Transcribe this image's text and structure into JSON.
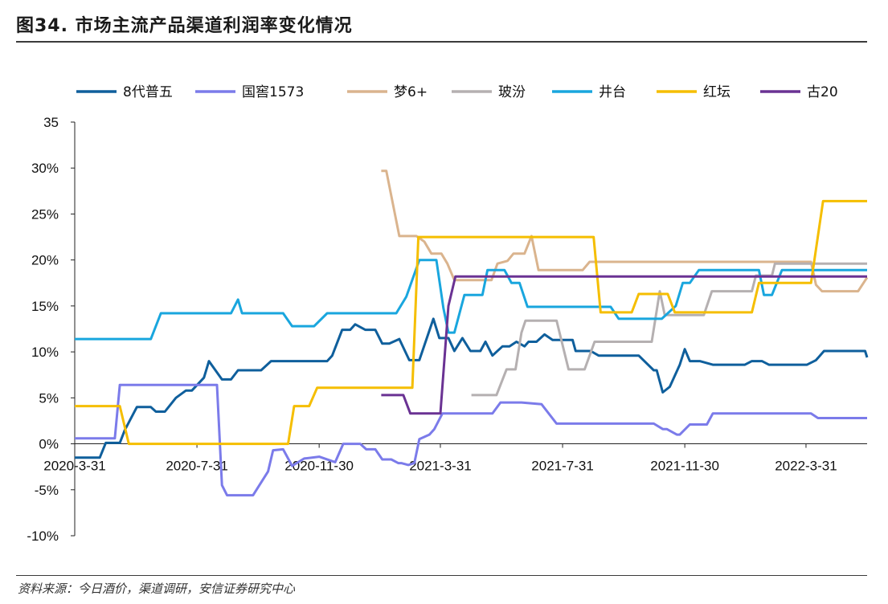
{
  "header": {
    "title": "图34. 市场主流产品渠道利润率变化情况"
  },
  "footer": {
    "source": "资料来源：今日酒价，渠道调研，安信证券研究中心"
  },
  "chart_data": {
    "type": "line",
    "title": "",
    "xlabel": "",
    "ylabel": "",
    "x_range": [
      "2020-03-31",
      "2022-05-31"
    ],
    "ylim": [
      -0.1,
      0.35
    ],
    "y_ticks": [
      "35",
      "30%",
      "25%",
      "20%",
      "15%",
      "10%",
      "5%",
      "0%",
      "-5%",
      "-10%"
    ],
    "x_ticks": [
      {
        "date": "2020-03-31",
        "label": "2020-3-31"
      },
      {
        "date": "2020-07-31",
        "label": "2020-7-31"
      },
      {
        "date": "2020-11-30",
        "label": "2020-11-30"
      },
      {
        "date": "2021-03-31",
        "label": "2021-3-31"
      },
      {
        "date": "2021-07-31",
        "label": "2021-7-31"
      },
      {
        "date": "2021-11-30",
        "label": "2021-11-30"
      },
      {
        "date": "2022-03-31",
        "label": "2022-3-31"
      }
    ],
    "legend_position": "top",
    "grid": false,
    "series": [
      {
        "name": "8代普五",
        "color": "#0f5f9c",
        "points": [
          [
            "2020-03-31",
            -0.015
          ],
          [
            "2020-04-25",
            -0.015
          ],
          [
            "2020-05-01",
            0.001
          ],
          [
            "2020-05-15",
            0.001
          ],
          [
            "2020-05-20",
            0.015
          ],
          [
            "2020-06-01",
            0.04
          ],
          [
            "2020-06-15",
            0.04
          ],
          [
            "2020-06-20",
            0.035
          ],
          [
            "2020-06-29",
            0.035
          ],
          [
            "2020-07-10",
            0.05
          ],
          [
            "2020-07-20",
            0.058
          ],
          [
            "2020-07-26",
            0.058
          ],
          [
            "2020-08-07",
            0.072
          ],
          [
            "2020-08-12",
            0.09
          ],
          [
            "2020-08-25",
            0.07
          ],
          [
            "2020-09-03",
            0.07
          ],
          [
            "2020-09-10",
            0.08
          ],
          [
            "2020-09-29",
            0.08
          ],
          [
            "2020-10-03",
            0.08
          ],
          [
            "2020-10-13",
            0.09
          ],
          [
            "2020-11-30",
            0.09
          ],
          [
            "2020-12-08",
            0.09
          ],
          [
            "2020-12-13",
            0.096
          ],
          [
            "2020-12-23",
            0.124
          ],
          [
            "2020-12-31",
            0.124
          ],
          [
            "2021-01-05",
            0.13
          ],
          [
            "2021-01-15",
            0.124
          ],
          [
            "2021-01-25",
            0.124
          ],
          [
            "2021-02-01",
            0.109
          ],
          [
            "2021-02-08",
            0.109
          ],
          [
            "2021-02-18",
            0.114
          ],
          [
            "2021-02-28",
            0.091
          ],
          [
            "2021-03-10",
            0.091
          ],
          [
            "2021-03-24",
            0.136
          ],
          [
            "2021-03-30",
            0.115
          ],
          [
            "2021-04-08",
            0.115
          ],
          [
            "2021-04-14",
            0.101
          ],
          [
            "2021-04-22",
            0.115
          ],
          [
            "2021-04-30",
            0.101
          ],
          [
            "2021-05-10",
            0.101
          ],
          [
            "2021-05-15",
            0.111
          ],
          [
            "2021-05-22",
            0.096
          ],
          [
            "2021-06-01",
            0.106
          ],
          [
            "2021-06-08",
            0.106
          ],
          [
            "2021-06-15",
            0.111
          ],
          [
            "2021-06-23",
            0.106
          ],
          [
            "2021-06-27",
            0.111
          ],
          [
            "2021-07-05",
            0.111
          ],
          [
            "2021-07-13",
            0.119
          ],
          [
            "2021-07-21",
            0.113
          ],
          [
            "2021-08-10",
            0.113
          ],
          [
            "2021-08-13",
            0.101
          ],
          [
            "2021-08-28",
            0.101
          ],
          [
            "2021-09-05",
            0.096
          ],
          [
            "2021-10-15",
            0.096
          ],
          [
            "2021-10-30",
            0.08
          ],
          [
            "2021-11-02",
            0.08
          ],
          [
            "2021-11-08",
            0.056
          ],
          [
            "2021-11-15",
            0.062
          ],
          [
            "2021-11-25",
            0.086
          ],
          [
            "2021-11-30",
            0.103
          ],
          [
            "2021-12-05",
            0.09
          ],
          [
            "2021-12-15",
            0.09
          ],
          [
            "2021-12-28",
            0.086
          ],
          [
            "2022-01-15",
            0.086
          ],
          [
            "2022-01-29",
            0.086
          ],
          [
            "2022-02-05",
            0.09
          ],
          [
            "2022-02-15",
            0.09
          ],
          [
            "2022-02-22",
            0.086
          ],
          [
            "2022-04-01",
            0.086
          ],
          [
            "2022-04-10",
            0.091
          ],
          [
            "2022-04-18",
            0.101
          ],
          [
            "2022-05-29",
            0.101
          ],
          [
            "2022-05-31",
            0.094
          ]
        ]
      },
      {
        "name": "国窖1573",
        "color": "#7b7bea",
        "points": [
          [
            "2020-03-31",
            0.006
          ],
          [
            "2020-05-10",
            0.006
          ],
          [
            "2020-05-15",
            0.064
          ],
          [
            "2020-08-20",
            0.064
          ],
          [
            "2020-08-25",
            -0.045
          ],
          [
            "2020-08-30",
            -0.056
          ],
          [
            "2020-09-25",
            -0.056
          ],
          [
            "2020-10-10",
            -0.03
          ],
          [
            "2020-10-15",
            -0.007
          ],
          [
            "2020-10-25",
            -0.006
          ],
          [
            "2020-11-03",
            -0.024
          ],
          [
            "2020-11-15",
            -0.016
          ],
          [
            "2020-11-30",
            -0.014
          ],
          [
            "2020-12-16",
            -0.02
          ],
          [
            "2020-12-24",
            0.0
          ],
          [
            "2021-01-10",
            0.0
          ],
          [
            "2021-01-16",
            -0.006
          ],
          [
            "2021-01-25",
            -0.006
          ],
          [
            "2021-02-01",
            -0.017
          ],
          [
            "2021-02-10",
            -0.017
          ],
          [
            "2021-02-17",
            -0.021
          ],
          [
            "2021-02-20",
            -0.021
          ],
          [
            "2021-02-27",
            -0.023
          ],
          [
            "2021-03-05",
            -0.021
          ],
          [
            "2021-03-10",
            0.005
          ],
          [
            "2021-03-20",
            0.01
          ],
          [
            "2021-03-25",
            0.016
          ],
          [
            "2021-04-02",
            0.033
          ],
          [
            "2021-05-22",
            0.033
          ],
          [
            "2021-05-30",
            0.045
          ],
          [
            "2021-06-20",
            0.045
          ],
          [
            "2021-07-10",
            0.043
          ],
          [
            "2021-07-25",
            0.022
          ],
          [
            "2021-10-30",
            0.022
          ],
          [
            "2021-11-08",
            0.016
          ],
          [
            "2021-11-12",
            0.016
          ],
          [
            "2021-11-22",
            0.01
          ],
          [
            "2021-11-25",
            0.01
          ],
          [
            "2021-12-05",
            0.021
          ],
          [
            "2021-12-22",
            0.021
          ],
          [
            "2021-12-28",
            0.033
          ],
          [
            "2022-04-05",
            0.033
          ],
          [
            "2022-04-12",
            0.028
          ],
          [
            "2022-05-31",
            0.028
          ]
        ]
      },
      {
        "name": "梦6+",
        "color": "#dab48e",
        "points": [
          [
            "2021-01-31",
            0.297
          ],
          [
            "2021-02-05",
            0.297
          ],
          [
            "2021-02-18",
            0.226
          ],
          [
            "2021-03-07",
            0.226
          ],
          [
            "2021-03-15",
            0.22
          ],
          [
            "2021-03-22",
            0.207
          ],
          [
            "2021-04-01",
            0.207
          ],
          [
            "2021-04-07",
            0.196
          ],
          [
            "2021-04-14",
            0.178
          ],
          [
            "2021-05-21",
            0.178
          ],
          [
            "2021-05-27",
            0.196
          ],
          [
            "2021-06-06",
            0.199
          ],
          [
            "2021-06-12",
            0.207
          ],
          [
            "2021-06-23",
            0.207
          ],
          [
            "2021-06-30",
            0.226
          ],
          [
            "2021-07-07",
            0.189
          ],
          [
            "2021-08-20",
            0.189
          ],
          [
            "2021-08-27",
            0.198
          ],
          [
            "2022-04-05",
            0.198
          ],
          [
            "2022-04-10",
            0.173
          ],
          [
            "2022-04-16",
            0.166
          ],
          [
            "2022-05-22",
            0.166
          ],
          [
            "2022-05-31",
            0.181
          ]
        ]
      },
      {
        "name": "玻汾",
        "color": "#b5b0b1",
        "points": [
          [
            "2021-05-01",
            0.053
          ],
          [
            "2021-05-26",
            0.053
          ],
          [
            "2021-06-05",
            0.081
          ],
          [
            "2021-06-14",
            0.081
          ],
          [
            "2021-06-20",
            0.121
          ],
          [
            "2021-06-24",
            0.134
          ],
          [
            "2021-07-25",
            0.134
          ],
          [
            "2021-08-06",
            0.081
          ],
          [
            "2021-08-22",
            0.081
          ],
          [
            "2021-09-01",
            0.111
          ],
          [
            "2021-10-28",
            0.111
          ],
          [
            "2021-11-05",
            0.166
          ],
          [
            "2021-11-10",
            0.14
          ],
          [
            "2021-12-19",
            0.14
          ],
          [
            "2021-12-27",
            0.166
          ],
          [
            "2022-02-05",
            0.166
          ],
          [
            "2022-02-09",
            0.183
          ],
          [
            "2022-02-25",
            0.183
          ],
          [
            "2022-02-28",
            0.196
          ],
          [
            "2022-05-31",
            0.196
          ]
        ]
      },
      {
        "name": "井台",
        "color": "#19a6de",
        "points": [
          [
            "2020-03-31",
            0.114
          ],
          [
            "2020-06-15",
            0.114
          ],
          [
            "2020-06-25",
            0.142
          ],
          [
            "2020-09-03",
            0.142
          ],
          [
            "2020-09-10",
            0.157
          ],
          [
            "2020-09-14",
            0.142
          ],
          [
            "2020-10-25",
            0.142
          ],
          [
            "2020-11-03",
            0.128
          ],
          [
            "2020-11-25",
            0.128
          ],
          [
            "2020-12-08",
            0.142
          ],
          [
            "2021-02-15",
            0.142
          ],
          [
            "2021-02-25",
            0.16
          ],
          [
            "2021-03-10",
            0.2
          ],
          [
            "2021-03-27",
            0.2
          ],
          [
            "2021-04-03",
            0.148
          ],
          [
            "2021-04-08",
            0.121
          ],
          [
            "2021-04-14",
            0.121
          ],
          [
            "2021-04-24",
            0.162
          ],
          [
            "2021-05-12",
            0.162
          ],
          [
            "2021-05-17",
            0.189
          ],
          [
            "2021-06-03",
            0.189
          ],
          [
            "2021-06-10",
            0.175
          ],
          [
            "2021-06-18",
            0.175
          ],
          [
            "2021-06-26",
            0.149
          ],
          [
            "2021-09-17",
            0.149
          ],
          [
            "2021-09-25",
            0.136
          ],
          [
            "2021-11-07",
            0.136
          ],
          [
            "2021-11-21",
            0.15
          ],
          [
            "2021-11-28",
            0.175
          ],
          [
            "2021-12-05",
            0.175
          ],
          [
            "2021-12-14",
            0.189
          ],
          [
            "2022-02-12",
            0.189
          ],
          [
            "2022-02-17",
            0.162
          ],
          [
            "2022-02-25",
            0.162
          ],
          [
            "2022-03-07",
            0.189
          ],
          [
            "2022-05-31",
            0.189
          ]
        ]
      },
      {
        "name": "红坛",
        "color": "#f5be00",
        "points": [
          [
            "2020-03-31",
            0.041
          ],
          [
            "2020-05-15",
            0.041
          ],
          [
            "2020-05-24",
            0.0
          ],
          [
            "2020-10-30",
            0.0
          ],
          [
            "2020-11-05",
            0.041
          ],
          [
            "2020-11-20",
            0.041
          ],
          [
            "2020-11-28",
            0.061
          ],
          [
            "2021-03-03",
            0.061
          ],
          [
            "2021-03-09",
            0.225
          ],
          [
            "2021-08-31",
            0.225
          ],
          [
            "2021-09-07",
            0.143
          ],
          [
            "2021-10-08",
            0.143
          ],
          [
            "2021-10-15",
            0.163
          ],
          [
            "2021-11-13",
            0.163
          ],
          [
            "2021-11-20",
            0.143
          ],
          [
            "2022-02-05",
            0.143
          ],
          [
            "2022-02-12",
            0.175
          ],
          [
            "2022-04-05",
            0.175
          ],
          [
            "2022-04-17",
            0.264
          ],
          [
            "2022-05-31",
            0.264
          ]
        ]
      },
      {
        "name": "古20",
        "color": "#6a3293",
        "points": [
          [
            "2021-01-31",
            0.053
          ],
          [
            "2021-02-22",
            0.053
          ],
          [
            "2021-03-01",
            0.033
          ],
          [
            "2021-03-31",
            0.033
          ],
          [
            "2021-04-08",
            0.15
          ],
          [
            "2021-04-15",
            0.182
          ],
          [
            "2022-05-31",
            0.182
          ]
        ]
      }
    ]
  }
}
